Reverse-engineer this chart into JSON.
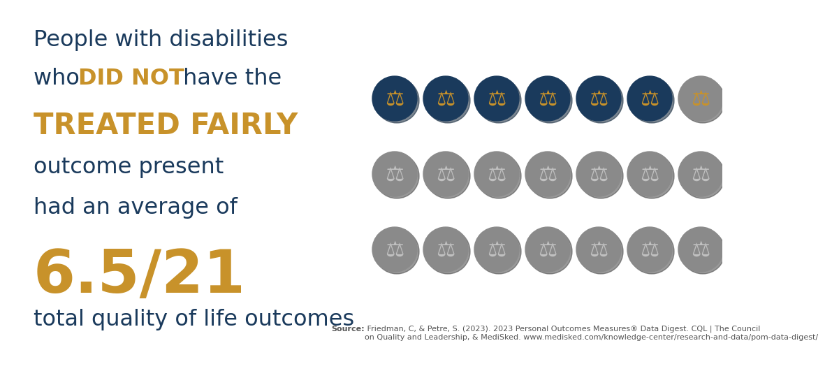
{
  "background_color": "#ffffff",
  "dark_blue": "#1a3a5c",
  "gold": "#c8922a",
  "gray_circle": "#8a8a8a",
  "shadow_dark": "#444444",
  "shadow_blue": "#0d2236",
  "icon_color_active": "#c8922a",
  "icon_color_inactive": "#c0c0c0",
  "source_color": "#555555",
  "active_color": "#1a3a5c",
  "grid_cols": 7,
  "grid_rows": 3,
  "total_icons": 21,
  "active_dark_icons": 6,
  "source_bold": "Source:",
  "source_rest": " Friedman, C, & Petre, S. (2023). 2023 Personal Outcomes Measures® Data Digest. CQL | The Council\non Quality and Leadership, & MediSked. www.medisked.com/knowledge-center/research-and-data/pom-data-digest/"
}
